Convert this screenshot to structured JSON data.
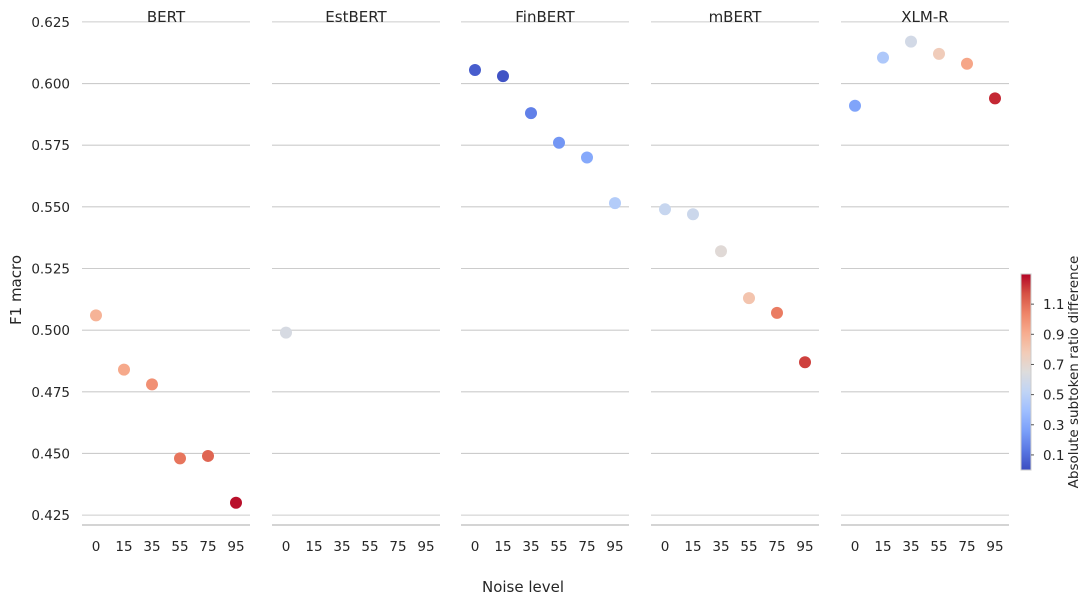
{
  "chart_data": {
    "type": "scatter",
    "xlabel": "Noise level",
    "ylabel": "F1 macro",
    "ylim": [
      0.421,
      0.629
    ],
    "yticks": [
      "0.425",
      "0.450",
      "0.475",
      "0.500",
      "0.525",
      "0.550",
      "0.575",
      "0.600",
      "0.625"
    ],
    "x_categories": [
      "0",
      "15",
      "35",
      "55",
      "75",
      "95"
    ],
    "grid": "horizontal",
    "colorbar": {
      "label": "Absolute subtoken ratio difference",
      "cmap": "coolwarm",
      "range": [
        0.0,
        1.3
      ],
      "ticks": [
        "0.1",
        "0.3",
        "0.5",
        "0.7",
        "0.9",
        "1.1"
      ],
      "colors": [
        "#3b4cc0",
        "#5977e3",
        "#7b9ff9",
        "#9ebeff",
        "#c0d4f5",
        "#dddcdc",
        "#f2cbb7",
        "#f7ac8e",
        "#ee8468",
        "#d65244",
        "#b40426"
      ]
    },
    "panels": [
      {
        "title": "BERT",
        "points": [
          {
            "x": "0",
            "y": 0.506,
            "c": 0.88
          },
          {
            "x": "15",
            "y": 0.484,
            "c": 0.92
          },
          {
            "x": "35",
            "y": 0.478,
            "c": 1.0
          },
          {
            "x": "55",
            "y": 0.448,
            "c": 1.08
          },
          {
            "x": "75",
            "y": 0.449,
            "c": 1.12
          },
          {
            "x": "95",
            "y": 0.43,
            "c": 1.28
          }
        ]
      },
      {
        "title": "EstBERT",
        "points": [
          {
            "x": "0",
            "y": 0.499,
            "c": 0.62
          }
        ]
      },
      {
        "title": "FinBERT",
        "points": [
          {
            "x": "0",
            "y": 0.6055,
            "c": 0.05
          },
          {
            "x": "15",
            "y": 0.603,
            "c": 0.02
          },
          {
            "x": "35",
            "y": 0.588,
            "c": 0.16
          },
          {
            "x": "55",
            "y": 0.576,
            "c": 0.23
          },
          {
            "x": "75",
            "y": 0.57,
            "c": 0.3
          },
          {
            "x": "95",
            "y": 0.5515,
            "c": 0.47
          }
        ]
      },
      {
        "title": "mBERT",
        "points": [
          {
            "x": "0",
            "y": 0.549,
            "c": 0.55
          },
          {
            "x": "15",
            "y": 0.547,
            "c": 0.57
          },
          {
            "x": "35",
            "y": 0.532,
            "c": 0.67
          },
          {
            "x": "55",
            "y": 0.513,
            "c": 0.81
          },
          {
            "x": "75",
            "y": 0.507,
            "c": 1.06
          },
          {
            "x": "95",
            "y": 0.487,
            "c": 1.2
          }
        ]
      },
      {
        "title": "XLM-R",
        "points": [
          {
            "x": "0",
            "y": 0.591,
            "c": 0.28
          },
          {
            "x": "15",
            "y": 0.6105,
            "c": 0.45
          },
          {
            "x": "35",
            "y": 0.617,
            "c": 0.6
          },
          {
            "x": "55",
            "y": 0.612,
            "c": 0.77
          },
          {
            "x": "75",
            "y": 0.608,
            "c": 0.93
          },
          {
            "x": "95",
            "y": 0.594,
            "c": 1.24
          }
        ]
      }
    ]
  }
}
